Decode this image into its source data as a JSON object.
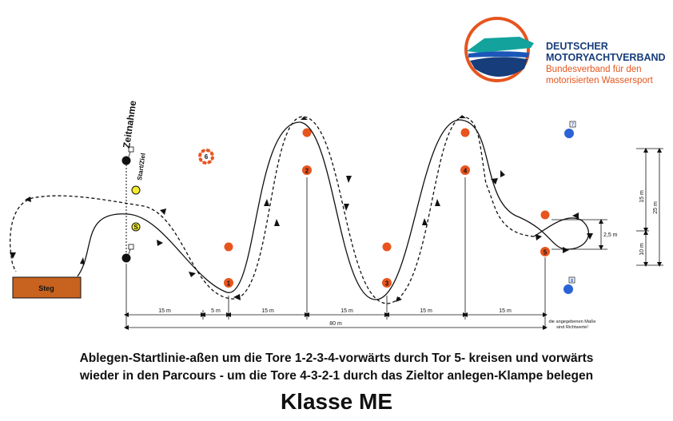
{
  "organization": {
    "name_line1": "DEUTSCHER",
    "name_line2": "MOTORYACHTVERBAND",
    "subtitle_line1": "Bundesverband für den",
    "subtitle_line2": "motorisierten Wassersport",
    "colors": {
      "navy": "#173d7a",
      "orange": "#e5551e",
      "teal": "#13a39c",
      "blue": "#1b57b8"
    }
  },
  "course": {
    "zeitnahme_label": "Zeitnahme",
    "start_ziel_label": "Start/Ziel",
    "steg_label": "Steg",
    "start_marker_label": "S",
    "gates": [
      {
        "label": "1",
        "color": "#e8541e"
      },
      {
        "label": "2",
        "color": "#e8541e"
      },
      {
        "label": "3",
        "color": "#e8541e"
      },
      {
        "label": "4",
        "color": "#e8541e"
      },
      {
        "label": "5",
        "color": "#e8541e"
      }
    ],
    "lifebuoy_label": "6",
    "blue_buoys": [
      {
        "label": "7"
      },
      {
        "label": "8"
      }
    ],
    "buoy_colors": {
      "gate": "#e8541e",
      "blue": "#2b63d6",
      "yellow": "#f4ec2a",
      "black": "#111111",
      "dock": "#c8621f"
    }
  },
  "dimensions": {
    "segments": [
      "15 m",
      "5 m",
      "15 m",
      "15 m",
      "15 m",
      "15 m"
    ],
    "total": "80 m",
    "note_line1": "die angegebenen Maße",
    "note_line2": "sind Richtwerte!",
    "vertical": {
      "upper": "15 m",
      "lower": "10 m",
      "total": "25 m",
      "circle_width": "2,5 m"
    }
  },
  "description": {
    "line1": "Ablegen-Startlinie-aßen um die Tore 1-2-3-4-vorwärts durch Tor 5- kreisen und vorwärts",
    "line2": "wieder in den Parcours - um die Tore 4-3-2-1 durch das Zieltor anlegen-Klampe belegen"
  },
  "class_title": "Klasse ME"
}
